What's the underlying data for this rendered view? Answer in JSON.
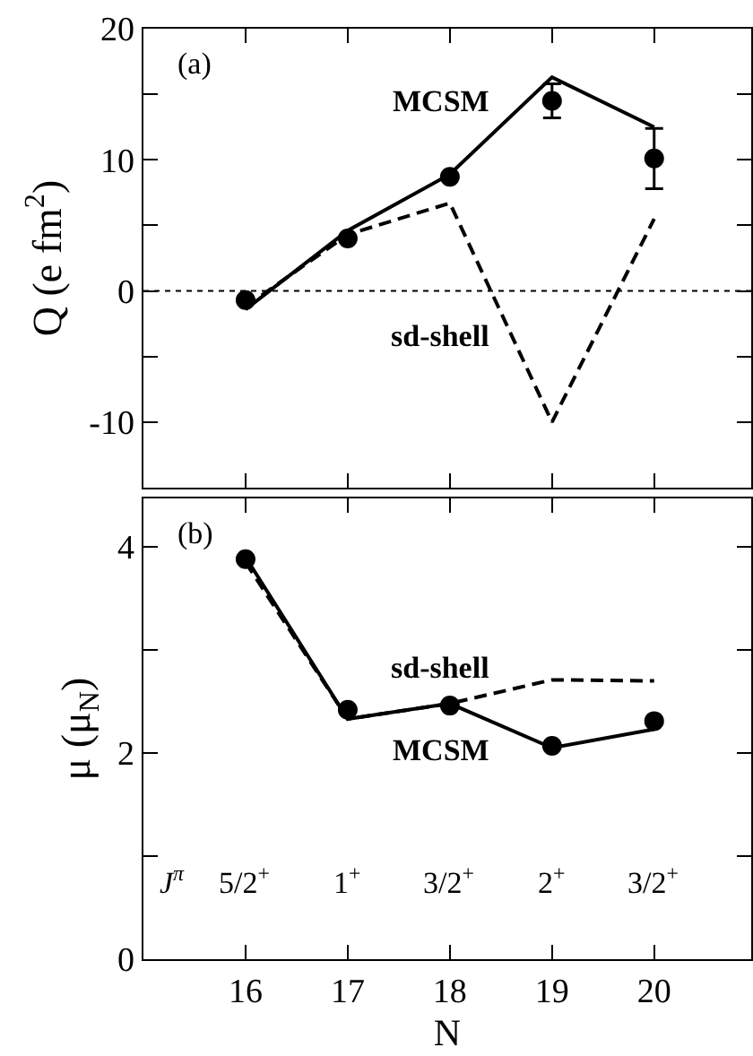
{
  "chart_data": [
    {
      "type": "line",
      "ylabel": "Q (e fm$^{2}$)",
      "x": [
        16,
        17,
        18,
        19,
        20
      ],
      "xlim": [
        15,
        20.95
      ],
      "xticks": [
        16,
        17,
        18,
        19,
        20
      ],
      "ylim": [
        -15,
        20
      ],
      "yticks": [
        {
          "value": -15,
          "label": null
        },
        -10,
        {
          "value": -5,
          "label": null
        },
        0,
        {
          "value": 5,
          "label": null
        },
        10,
        {
          "value": 15,
          "label": null
        },
        20
      ],
      "tick_labels": "y",
      "legend": false,
      "grid": false,
      "series": [
        {
          "type": "line",
          "name": "MCSM",
          "color": "#000000",
          "line_style": "solid",
          "marker": "none",
          "values": [
            -1.4,
            4.6,
            8.9,
            16.3,
            12.5
          ]
        },
        {
          "type": "line",
          "name": "sd-shell",
          "color": "#000000",
          "line_style": "dashed",
          "marker": "none",
          "values": [
            -1.2,
            4.3,
            6.7,
            -10,
            5.5
          ]
        },
        {
          "type": "scatter",
          "color": "#000000",
          "marker": "circle",
          "values": [
            -0.7,
            4.0,
            8.7,
            14.5,
            10.1
          ],
          "errors": [
            null,
            null,
            null,
            1.3,
            2.3
          ]
        }
      ],
      "ref_lines": [
        {
          "axis": "y",
          "value": 0,
          "color": "#000000",
          "line_style": "dotted"
        }
      ],
      "annotations": [
        "(a)"
      ]
    },
    {
      "type": "line",
      "ylabel": "μ (μ$_{N}$)",
      "xlabel": "N",
      "x": [
        16,
        17,
        18,
        19,
        20
      ],
      "xlim": [
        15,
        20.95
      ],
      "xticks": [
        16,
        17,
        18,
        19,
        20
      ],
      "ylim": [
        0,
        4.47
      ],
      "yticks": [
        0,
        {
          "value": 1,
          "label": null
        },
        2,
        {
          "value": 3,
          "label": null
        },
        4
      ],
      "legend": false,
      "grid": false,
      "series": [
        {
          "type": "line",
          "name": "MCSM",
          "color": "#000000",
          "line_style": "solid",
          "marker": "none",
          "values": [
            3.9,
            2.33,
            2.48,
            2.05,
            2.23
          ]
        },
        {
          "type": "line",
          "name": "sd-shell",
          "color": "#000000",
          "line_style": "dashed",
          "marker": "none",
          "values": [
            3.85,
            2.33,
            2.48,
            2.71,
            2.7
          ]
        },
        {
          "type": "scatter",
          "color": "#000000",
          "marker": "circle",
          "values": [
            3.88,
            2.42,
            2.46,
            2.07,
            2.31
          ]
        }
      ],
      "annotations": [
        "(b)",
        "J$^{π}$",
        "5/2$^{+}$",
        "1$^{+}$",
        "3/2$^{+}$",
        "2$^{+}$",
        "3/2$^{+}$"
      ]
    }
  ]
}
